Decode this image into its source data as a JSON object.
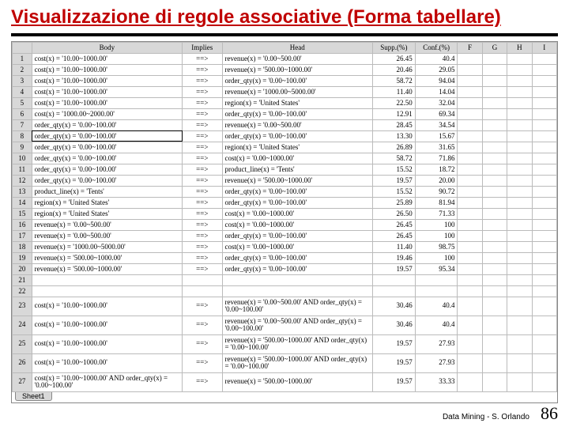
{
  "colors": {
    "title": "#c00000",
    "bg": "#ffffff",
    "grid_head": "#d8d8d8"
  },
  "title": "Visualizzazione di regole associative (Forma tabellare)",
  "columns": [
    "",
    "Body",
    "Implies",
    "Head",
    "Supp.(%)",
    "Conf.(%)",
    "F",
    "G",
    "H",
    "I"
  ],
  "rows": [
    {
      "n": "1",
      "body": "cost(x) = '10.00~1000.00'",
      "imp": "==>",
      "head": "revenue(x) = '0.00~500.00'",
      "supp": "26.45",
      "conf": "40.4"
    },
    {
      "n": "2",
      "body": "cost(x) = '10.00~1000.00'",
      "imp": "==>",
      "head": "revenue(x) = '500.00~1000.00'",
      "supp": "20.46",
      "conf": "29.05"
    },
    {
      "n": "3",
      "body": "cost(x) = '10.00~1000.00'",
      "imp": "==>",
      "head": "order_qty(x) = '0.00~100.00'",
      "supp": "58.72",
      "conf": "94.04"
    },
    {
      "n": "4",
      "body": "cost(x) = '10.00~1000.00'",
      "imp": "==>",
      "head": "revenue(x) = '1000.00~5000.00'",
      "supp": "11.40",
      "conf": "14.04"
    },
    {
      "n": "5",
      "body": "cost(x) = '10.00~1000.00'",
      "imp": "==>",
      "head": "region(x) = 'United States'",
      "supp": "22.50",
      "conf": "32.04"
    },
    {
      "n": "6",
      "body": "cost(x) = '1000.00~2000.00'",
      "imp": "==>",
      "head": "order_qty(x) = '0.00~100.00'",
      "supp": "12.91",
      "conf": "69.34"
    },
    {
      "n": "7",
      "body": "order_qty(x) = '0.00~100.00'",
      "imp": "==>",
      "head": "revenue(x) = '0.00~500.00'",
      "supp": "28.45",
      "conf": "34.54"
    },
    {
      "n": "8",
      "body": "order_qty(x) = '0.00~100.00'",
      "imp": "==>",
      "head": "order_qty(x) = '0.00~100.00'",
      "supp": "13.30",
      "conf": "15.67",
      "sel": true
    },
    {
      "n": "9",
      "body": "order_qty(x) = '0.00~100.00'",
      "imp": "==>",
      "head": "region(x) = 'United States'",
      "supp": "26.89",
      "conf": "31.65"
    },
    {
      "n": "10",
      "body": "order_qty(x) = '0.00~100.00'",
      "imp": "==>",
      "head": "cost(x) = '0.00~1000.00'",
      "supp": "58.72",
      "conf": "71.86"
    },
    {
      "n": "11",
      "body": "order_qty(x) = '0.00~100.00'",
      "imp": "==>",
      "head": "product_line(x) = 'Tents'",
      "supp": "15.52",
      "conf": "18.72"
    },
    {
      "n": "12",
      "body": "order_qty(x) = '0.00~100.00'",
      "imp": "==>",
      "head": "revenue(x) = '500.00~1000.00'",
      "supp": "19.57",
      "conf": "20.00"
    },
    {
      "n": "13",
      "body": "product_line(x) = 'Tents'",
      "imp": "==>",
      "head": "order_qty(x) = '0.00~100.00'",
      "supp": "15.52",
      "conf": "90.72"
    },
    {
      "n": "14",
      "body": "region(x) = 'United States'",
      "imp": "==>",
      "head": "order_qty(x) = '0.00~100.00'",
      "supp": "25.89",
      "conf": "81.94"
    },
    {
      "n": "15",
      "body": "region(x) = 'United States'",
      "imp": "==>",
      "head": "cost(x) = '0.00~1000.00'",
      "supp": "26.50",
      "conf": "71.33"
    },
    {
      "n": "16",
      "body": "revenue(x) = '0.00~500.00'",
      "imp": "==>",
      "head": "cost(x) = '0.00~1000.00'",
      "supp": "26.45",
      "conf": "100"
    },
    {
      "n": "17",
      "body": "revenue(x) = '0.00~500.00'",
      "imp": "==>",
      "head": "order_qty(x) = '0.00~100.00'",
      "supp": "26.45",
      "conf": "100"
    },
    {
      "n": "18",
      "body": "revenue(x) = '1000.00~5000.00'",
      "imp": "==>",
      "head": "cost(x) = '0.00~1000.00'",
      "supp": "11.40",
      "conf": "98.75"
    },
    {
      "n": "19",
      "body": "revenue(x) = '500.00~1000.00'",
      "imp": "==>",
      "head": "order_qty(x) = '0.00~100.00'",
      "supp": "19.46",
      "conf": "100"
    },
    {
      "n": "20",
      "body": "revenue(x) = '500.00~1000.00'",
      "imp": "==>",
      "head": "order_qty(x) = '0.00~100.00'",
      "supp": "19.57",
      "conf": "95.34"
    },
    {
      "n": "21",
      "body": "",
      "imp": "",
      "head": "",
      "supp": "",
      "conf": ""
    },
    {
      "n": "22",
      "body": "",
      "imp": "",
      "head": "",
      "supp": "",
      "conf": ""
    },
    {
      "n": "23",
      "body": "cost(x) = '10.00~1000.00'",
      "imp": "==>",
      "head": "revenue(x) = '0.00~500.00' AND order_qty(x) = '0.00~100.00'",
      "supp": "30.46",
      "conf": "40.4",
      "two": true
    },
    {
      "n": "24",
      "body": "cost(x) = '10.00~1000.00'",
      "imp": "==>",
      "head": "revenue(x) = '0.00~500.00' AND order_qty(x) = '0.00~100.00'",
      "supp": "30.46",
      "conf": "40.4",
      "two": true
    },
    {
      "n": "25",
      "body": "cost(x) = '10.00~1000.00'",
      "imp": "==>",
      "head": "revenue(x) = '500.00~1000.00' AND order_qty(x) = '0.00~100.00'",
      "supp": "19.57",
      "conf": "27.93",
      "two": true
    },
    {
      "n": "26",
      "body": "cost(x) = '10.00~1000.00'",
      "imp": "==>",
      "head": "revenue(x) = '500.00~1000.00' AND order_qty(x) = '0.00~100.00'",
      "supp": "19.57",
      "conf": "27.93",
      "two": true
    },
    {
      "n": "27",
      "body": "cost(x) = '10.00~1000.00' AND order_qty(x) = '0.00~100.00'",
      "imp": "==>",
      "head": "revenue(x) = '500.00~1000.00'",
      "supp": "19.57",
      "conf": "33.33",
      "two": true
    }
  ],
  "tab_label": "Sheet1",
  "footer_text": "Data Mining - S. Orlando",
  "page_number": "86"
}
